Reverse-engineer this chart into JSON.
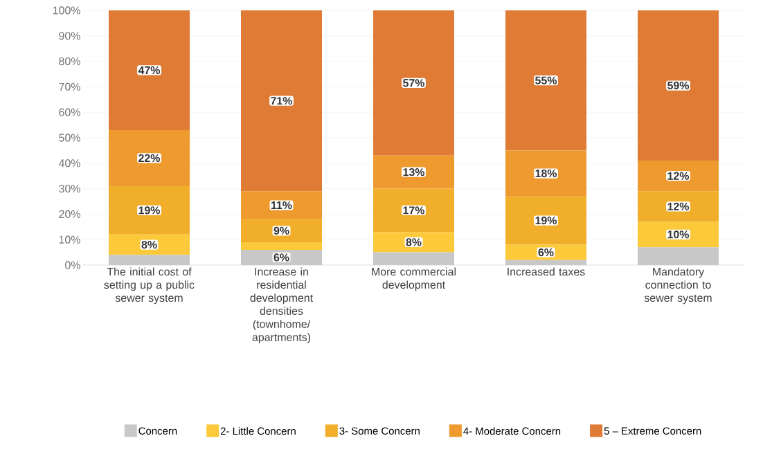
{
  "chart_data": {
    "type": "bar",
    "stacked": true,
    "categories": [
      "The initial cost of setting up a public sewer system",
      "Increase in residential development densities (townhome/ apartments)",
      "More commercial development",
      "Increased taxes",
      "Mandatory connection to sewer system"
    ],
    "series": [
      {
        "name": "Concern",
        "color": "#c8c8c8",
        "values": [
          4,
          6,
          5,
          2,
          7
        ],
        "value_labels": [
          null,
          "6%",
          null,
          null,
          null
        ]
      },
      {
        "name": "2- Little Concern",
        "color": "#fcc93a",
        "values": [
          8,
          3,
          8,
          6,
          10
        ],
        "value_labels": [
          "8%",
          null,
          "8%",
          "6%",
          "10%"
        ]
      },
      {
        "name": "3- Some Concern",
        "color": "#f0ae2a",
        "values": [
          19,
          9,
          17,
          19,
          12
        ],
        "value_labels": [
          "19%",
          "9%",
          "17%",
          "19%",
          "12%"
        ]
      },
      {
        "name": "4- Moderate Concern",
        "color": "#ef9a2e",
        "values": [
          22,
          11,
          13,
          18,
          12
        ],
        "value_labels": [
          "22%",
          "11%",
          "13%",
          "18%",
          "12%"
        ]
      },
      {
        "name": "5 – Extreme Concern",
        "color": "#e07b35",
        "values": [
          47,
          71,
          57,
          55,
          59
        ],
        "value_labels": [
          "47%",
          "71%",
          "57%",
          "55%",
          "59%"
        ]
      }
    ],
    "ylim": [
      0,
      100
    ],
    "yticks": [
      {
        "value": 0,
        "label": "0%"
      },
      {
        "value": 10,
        "label": "10%"
      },
      {
        "value": 20,
        "label": "20%"
      },
      {
        "value": 30,
        "label": "30%"
      },
      {
        "value": 40,
        "label": "40%"
      },
      {
        "value": 50,
        "label": "50%"
      },
      {
        "value": 60,
        "label": "60%"
      },
      {
        "value": 70,
        "label": "70%"
      },
      {
        "value": 80,
        "label": "80%"
      },
      {
        "value": 90,
        "label": "90%"
      },
      {
        "value": 100,
        "label": "100%"
      }
    ],
    "grid": "y",
    "legend": "bottom"
  }
}
